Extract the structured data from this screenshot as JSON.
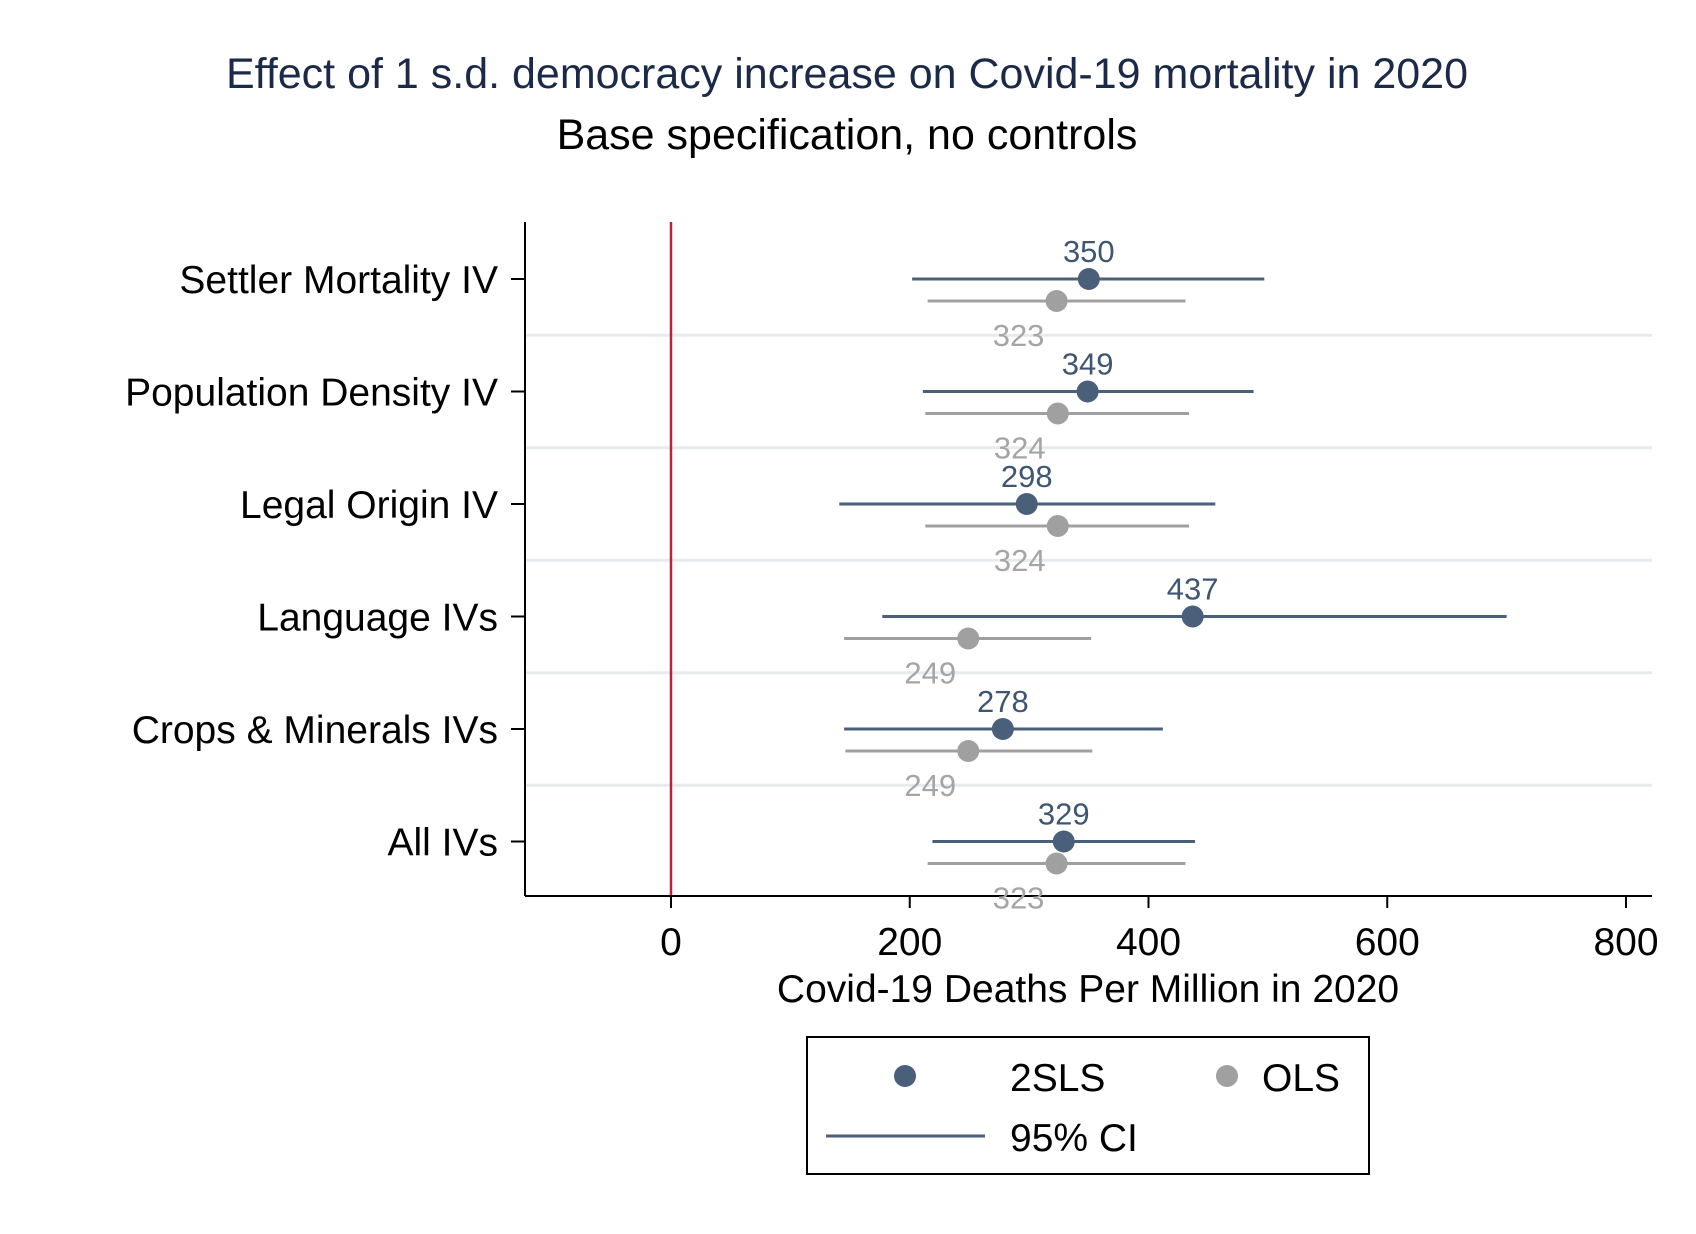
{
  "chart_data": {
    "type": "scatter",
    "title": "Effect of 1 s.d. democracy increase on Covid-19 mortality in 2020",
    "subtitle": "Base specification, no controls",
    "xlabel": "Covid-19 Deaths Per Million in 2020",
    "ylabel": "",
    "xlim": [
      -125,
      825
    ],
    "x_ticks": [
      0,
      200,
      400,
      600,
      800
    ],
    "reference_line": {
      "x": 0,
      "color": "#c0213a"
    },
    "grid": "horizontal",
    "categories": [
      "Settler Mortality IV",
      "Population Density IV",
      "Legal Origin IV",
      "Language IVs",
      "Crops & Minerals IVs",
      "All IVs"
    ],
    "series": [
      {
        "name": "2SLS",
        "color": "#4a5f7a",
        "values": [
          350,
          349,
          298,
          437,
          278,
          329
        ],
        "ci_low": [
          202,
          211,
          141,
          177,
          145,
          219
        ],
        "ci_high": [
          497,
          488,
          456,
          700,
          412,
          439
        ]
      },
      {
        "name": "OLS",
        "color": "#a0a0a0",
        "values": [
          323,
          324,
          324,
          249,
          249,
          323
        ],
        "ci_low": [
          215,
          213,
          213,
          145,
          146,
          215
        ],
        "ci_high": [
          431,
          434,
          434,
          352,
          353,
          431
        ]
      }
    ],
    "legend": {
      "position": "bottom-center",
      "items": [
        "2SLS",
        "OLS",
        "95% CI"
      ]
    }
  }
}
